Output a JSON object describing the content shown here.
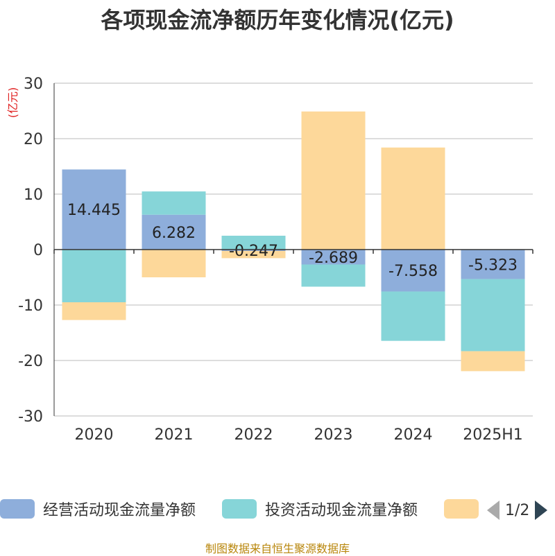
{
  "chart_data": {
    "type": "bar",
    "stacked": true,
    "title": "各项现金流净额历年变化情况(亿元)",
    "ylabel": "(亿元)",
    "categories": [
      "2020",
      "2021",
      "2022",
      "2023",
      "2024",
      "2025H1"
    ],
    "ylim": [
      -30,
      30
    ],
    "yticks": [
      30,
      20,
      10,
      0,
      -10,
      -20,
      -30
    ],
    "grid": true,
    "series": [
      {
        "name": "经营活动现金流量净额",
        "color": "#8eaedb",
        "values": [
          14.445,
          6.282,
          -0.247,
          -2.689,
          -7.558,
          -5.323
        ],
        "labels": [
          "14.445",
          "6.282",
          "-0.247",
          "-2.689",
          "-7.558",
          "-5.323"
        ]
      },
      {
        "name": "投资活动现金流量净额",
        "color": "#86d5d8",
        "values": [
          -9.5,
          4.2,
          2.5,
          -4.0,
          -8.9,
          -13.0
        ]
      },
      {
        "name": "",
        "color": "#fdd89a",
        "values": [
          -3.2,
          -5.0,
          -1.3,
          24.9,
          18.4,
          -3.6
        ]
      }
    ],
    "legend": {
      "position": "bottom",
      "page": "1/2"
    }
  },
  "source": "制图数据来自恒生聚源数据库"
}
